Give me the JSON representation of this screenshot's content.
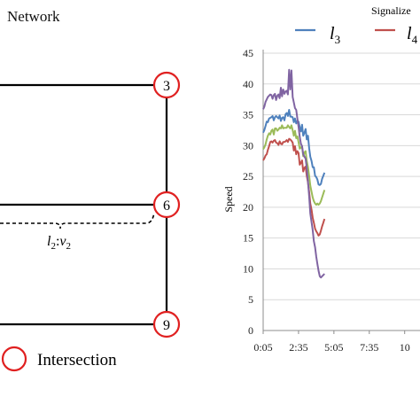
{
  "network_panel": {
    "title": "Network",
    "nodes": [
      "3",
      "6",
      "9"
    ],
    "link_label_l": "l",
    "link_label_l_sub": "2",
    "link_label_v": "v",
    "link_label_v_sub": "2",
    "sep": ":",
    "legend": {
      "label": "Intersection",
      "color": "#e02020"
    }
  },
  "chart_data": {
    "type": "line",
    "title": "Signalize",
    "ylabel": "Speed",
    "xlabel": "",
    "ylim": [
      0,
      45
    ],
    "yticks": [
      "0",
      "5",
      "10",
      "15",
      "20",
      "25",
      "30",
      "35",
      "40",
      "45"
    ],
    "xticks": [
      "0:05",
      "2:35",
      "5:05",
      "7:35",
      "10"
    ],
    "grid": "horizontal",
    "legend": {
      "placement": "top"
    },
    "series": [
      {
        "name": "l3",
        "label_main": "l",
        "label_sub": "3",
        "color": "#4f81bd",
        "x_start_min": 5,
        "x_step_min": 5,
        "values": [
          32.1,
          32.5,
          33.2,
          33.9,
          33.8,
          34.4,
          34.5,
          34.6,
          34.8,
          34.1,
          34.6,
          34.8,
          34.6,
          34.4,
          34.9,
          34.0,
          34.5,
          34.6,
          34.1,
          35.1,
          35.3,
          34.8,
          35.8,
          34.7,
          34.7,
          34.6,
          33.8,
          34.4,
          33.6,
          34.0,
          33.9,
          33.0,
          32.3,
          33.4,
          31.6,
          32.1,
          32.7,
          31.0,
          31.6,
          29.6,
          28.2,
          27.5,
          26.5,
          26.5,
          25.1,
          24.9,
          24.5,
          23.7,
          23.6,
          23.8,
          24.6,
          25.1,
          25.6
        ]
      },
      {
        "name": "l4",
        "label_main": "l",
        "label_sub": "4",
        "color": "#c0504d",
        "x_start_min": 5,
        "x_step_min": 5,
        "values": [
          27.6,
          27.9,
          28.4,
          28.6,
          29.3,
          29.9,
          30.6,
          30.7,
          30.5,
          30.8,
          30.9,
          30.5,
          30.4,
          30.1,
          30.7,
          30.3,
          30.2,
          30.6,
          30.6,
          30.7,
          30.9,
          30.6,
          31.1,
          31.0,
          30.8,
          30.5,
          29.2,
          29.9,
          28.6,
          29.1,
          28.8,
          26.9,
          27.2,
          27.6,
          25.8,
          26.4,
          26.6,
          25.1,
          24.0,
          22.5,
          20.6,
          19.6,
          18.3,
          17.5,
          16.5,
          16.1,
          15.8,
          15.4,
          15.6,
          16.2,
          16.9,
          17.5,
          18.1
        ]
      },
      {
        "name": "",
        "color": "#9bbb59",
        "x_start_min": 5,
        "x_step_min": 5,
        "values": [
          29.4,
          29.7,
          30.2,
          31.0,
          31.6,
          32.0,
          31.8,
          32.4,
          32.6,
          31.8,
          32.8,
          32.8,
          32.4,
          32.6,
          32.9,
          32.8,
          33.3,
          32.8,
          32.9,
          32.9,
          32.9,
          33.3,
          33.0,
          32.8,
          33.3,
          32.5,
          31.6,
          32.4,
          31.2,
          31.5,
          30.6,
          29.5,
          29.7,
          29.9,
          28.3,
          28.9,
          29.1,
          27.5,
          26.5,
          25.1,
          23.5,
          22.5,
          21.6,
          21.0,
          20.6,
          20.4,
          20.6,
          20.4,
          20.6,
          21.0,
          21.6,
          22.2,
          22.8
        ]
      },
      {
        "name": "",
        "color": "#8064a2",
        "x_start_min": 5,
        "x_step_min": 5,
        "values": [
          35.9,
          36.3,
          37.1,
          37.5,
          37.9,
          38.1,
          38.3,
          38.2,
          37.6,
          38.2,
          38.4,
          37.4,
          38.1,
          38.3,
          37.7,
          39.4,
          38.0,
          39.1,
          38.4,
          38.8,
          38.9,
          38.3,
          42.3,
          39.1,
          42.2,
          37.9,
          37.0,
          36.1,
          35.8,
          34.4,
          33.1,
          31.4,
          30.3,
          29.9,
          28.6,
          28.2,
          27.9,
          26.4,
          24.1,
          21.8,
          19.0,
          17.6,
          16.3,
          14.5,
          13.5,
          12.0,
          10.8,
          9.7,
          8.8,
          8.6,
          8.8,
          9.0,
          9.2
        ]
      }
    ]
  }
}
